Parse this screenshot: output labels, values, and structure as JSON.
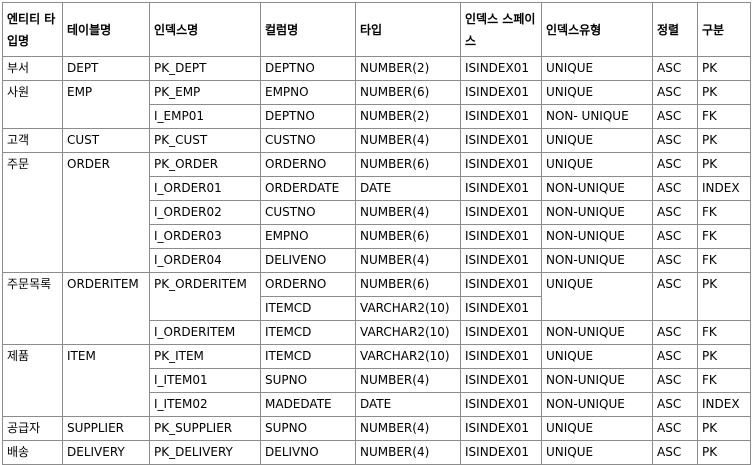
{
  "headers": {
    "entity_type": "엔티티 타입명",
    "table_name": "테이블명",
    "index_name": "인덱스명",
    "column_name": "컬럼명",
    "type": "타입",
    "index_space": "인덱스 스페이스",
    "index_kind": "인덱스유형",
    "sort": "정렬",
    "category": "구분"
  },
  "groups": [
    {
      "entity": "부서",
      "table": "DEPT",
      "rows": [
        {
          "index": "PK_DEPT",
          "column": "DEPTNO",
          "type": "NUMBER(2)",
          "space": "ISINDEX01",
          "kind": "UNIQUE",
          "sort": "ASC",
          "cat": "PK"
        }
      ]
    },
    {
      "entity": "사원",
      "table": "EMP",
      "rows": [
        {
          "index": "PK_EMP",
          "column": "EMPNO",
          "type": "NUMBER(6)",
          "space": "ISINDEX01",
          "kind": "UNIQUE",
          "sort": "ASC",
          "cat": "PK"
        },
        {
          "index": "I_EMP01",
          "column": "DEPTNO",
          "type": "NUMBER(2)",
          "space": "ISINDEX01",
          "kind": "NON- UNIQUE",
          "sort": "ASC",
          "cat": "FK"
        }
      ]
    },
    {
      "entity": "고객",
      "table": "CUST",
      "rows": [
        {
          "index": "PK_CUST",
          "column": "CUSTNO",
          "type": "NUMBER(4)",
          "space": "ISINDEX01",
          "kind": "UNIQUE",
          "sort": "ASC",
          "cat": "PK"
        }
      ]
    },
    {
      "entity": "주문",
      "table": "ORDER",
      "rows": [
        {
          "index": "PK_ORDER",
          "column": "ORDERNO",
          "type": "NUMBER(6)",
          "space": "ISINDEX01",
          "kind": "UNIQUE",
          "sort": "ASC",
          "cat": "PK"
        },
        {
          "index": "I_ORDER01",
          "column": "ORDERDATE",
          "type": "DATE",
          "space": "ISINDEX01",
          "kind": "NON-UNIQUE",
          "sort": "ASC",
          "cat": "INDEX"
        },
        {
          "index": "I_ORDER02",
          "column": "CUSTNO",
          "type": "NUMBER(4)",
          "space": "ISINDEX01",
          "kind": "NON-UNIQUE",
          "sort": "ASC",
          "cat": "FK"
        },
        {
          "index": "I_ORDER03",
          "column": "EMPNO",
          "type": "NUMBER(6)",
          "space": "ISINDEX01",
          "kind": "NON-UNIQUE",
          "sort": "ASC",
          "cat": "FK"
        },
        {
          "index": "I_ORDER04",
          "column": "DELIVENO",
          "type": "NUMBER(4)",
          "space": "ISINDEX01",
          "kind": "NON-UNIQUE",
          "sort": "ASC",
          "cat": "FK"
        }
      ]
    },
    {
      "entity": "주문목록",
      "table": "ORDERITEM",
      "rows": [
        {
          "index": "PK_ORDERITEM",
          "column": "ORDERNO",
          "type": "NUMBER(6)",
          "space": "ISINDEX01",
          "kind": "UNIQUE",
          "sort": "ASC",
          "cat": "PK"
        },
        {
          "index": "",
          "column": "ITEMCD",
          "type": "VARCHAR2(10)",
          "space": "ISINDEX01",
          "kind": "",
          "sort": "",
          "cat": ""
        },
        {
          "index": "I_ORDERITEM",
          "column": "ITEMCD",
          "type": "VARCHAR2(10)",
          "space": "ISINDEX01",
          "kind": "NON-UNIQUE",
          "sort": "ASC",
          "cat": "FK"
        }
      ]
    },
    {
      "entity": "제품",
      "table": "ITEM",
      "rows": [
        {
          "index": "PK_ITEM",
          "column": "ITEMCD",
          "type": "VARCHAR2(10)",
          "space": "ISINDEX01",
          "kind": "UNIQUE",
          "sort": "ASC",
          "cat": "PK"
        },
        {
          "index": "I_ITEM01",
          "column": "SUPNO",
          "type": "NUMBER(4)",
          "space": "ISINDEX01",
          "kind": "NON-UNIQUE",
          "sort": "ASC",
          "cat": "FK"
        },
        {
          "index": "I_ITEM02",
          "column": "MADEDATE",
          "type": "DATE",
          "space": "ISINDEX01",
          "kind": "NON-UNIQUE",
          "sort": "ASC",
          "cat": "INDEX"
        }
      ]
    },
    {
      "entity": "공급자",
      "table": "SUPPLIER",
      "rows": [
        {
          "index": "PK_SUPPLIER",
          "column": "SUPNO",
          "type": "NUMBER(4)",
          "space": "ISINDEX01",
          "kind": "UNIQUE",
          "sort": "ASC",
          "cat": "PK"
        }
      ]
    },
    {
      "entity": "배송",
      "table": "DELIVERY",
      "rows": [
        {
          "index": "PK_DELIVERY",
          "column": "DELIVNO",
          "type": "NUMBER(4)",
          "space": "ISINDEX01",
          "kind": "UNIQUE",
          "sort": "ASC",
          "cat": "PK"
        }
      ]
    }
  ]
}
